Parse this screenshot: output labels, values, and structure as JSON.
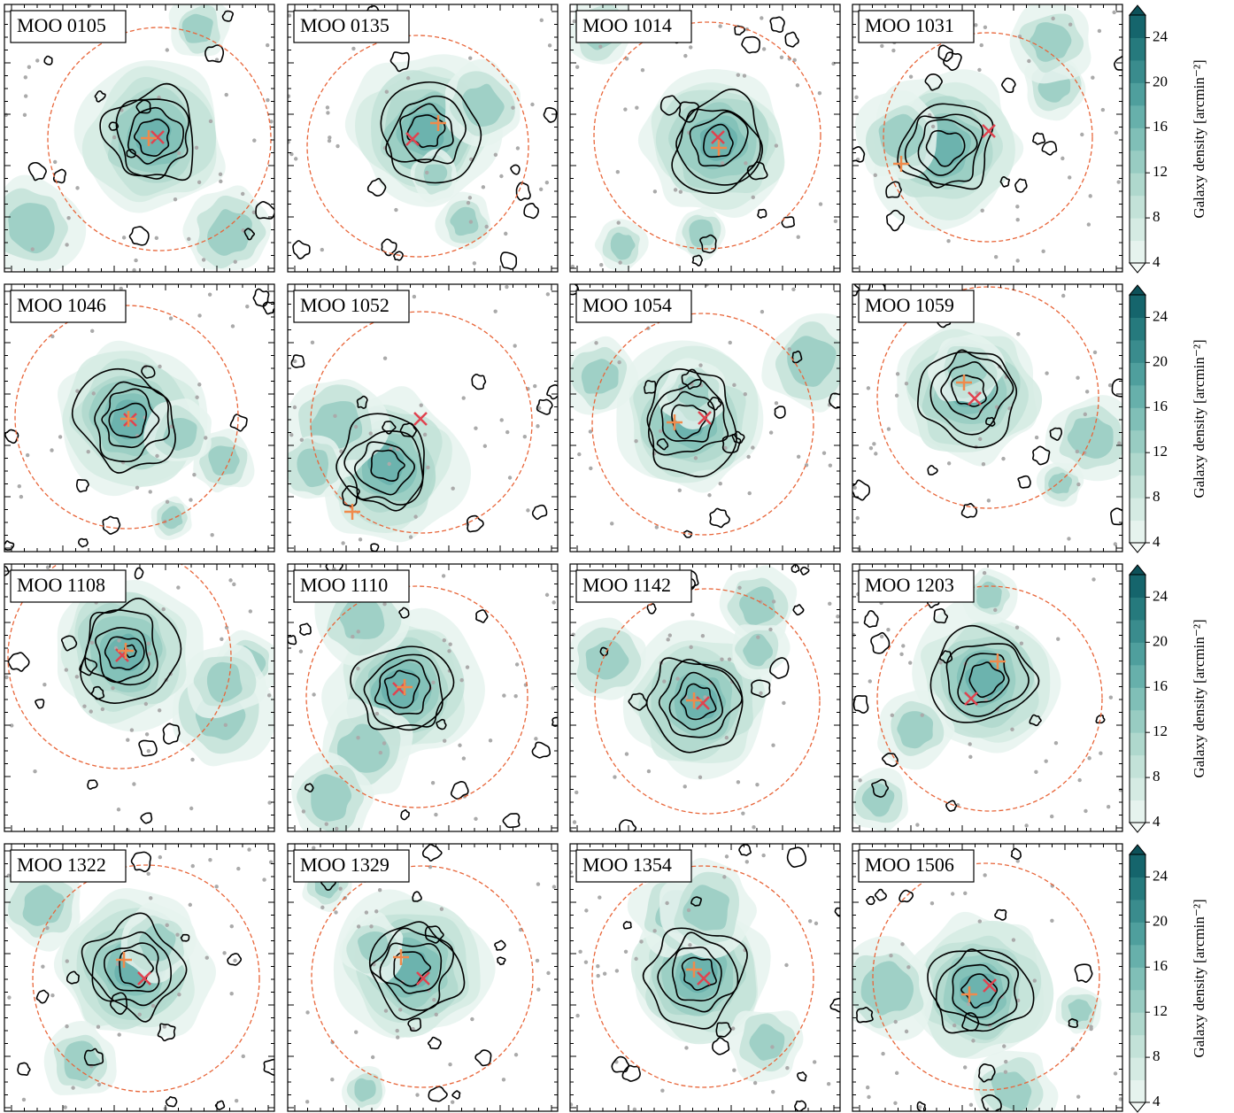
{
  "chart_data": {
    "type": "density-map-grid",
    "panels": [
      "MOO 0105",
      "MOO 0135",
      "MOO 1014",
      "MOO 1031",
      "MOO 1046",
      "MOO 1052",
      "MOO 1054",
      "MOO 1059",
      "MOO 1108",
      "MOO 1110",
      "MOO 1142",
      "MOO 1203",
      "MOO 1322",
      "MOO 1329",
      "MOO 1354",
      "MOO 1506"
    ],
    "colorbar": {
      "label": "Galaxy density [arcmin⁻²]",
      "lim": [
        4,
        26
      ],
      "ticks": [
        4,
        8,
        12,
        16,
        20,
        24
      ],
      "colors": [
        "#e6f3ee",
        "#d5ebe3",
        "#c3e2d8",
        "#afd8cd",
        "#98ccc2",
        "#80bfb7",
        "#67b0ab",
        "#4f9f9d",
        "#3a8c8d",
        "#267a7d",
        "#15656c"
      ],
      "extend_colors": [
        "#f3f9f6",
        "#0d5159"
      ]
    }
  }
}
